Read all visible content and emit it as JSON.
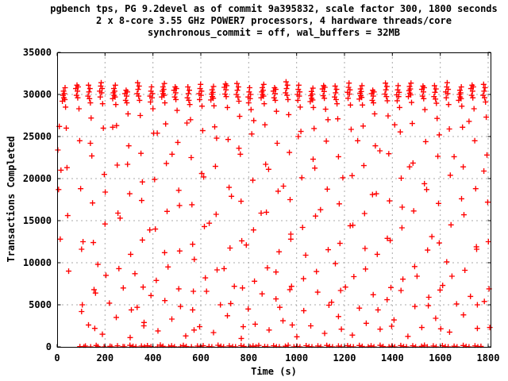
{
  "chart_data": {
    "type": "scatter",
    "title_lines": [
      "pgbench tps, PG 9.2devel as of commit 9a395832, scale factor 300, 1800 seconds",
      "2 x 8-core 3.55 GHz POWER7 processors, 4 hardware threads/core",
      "synchronous_commit = off, wal_buffers = 32MB"
    ],
    "xlabel": "Time (s)",
    "ylabel": "Transactions Completed",
    "xlim": [
      0,
      1810
    ],
    "ylim": [
      0,
      35000
    ],
    "xticks": [
      0,
      200,
      400,
      600,
      800,
      1000,
      1200,
      1400,
      1600,
      1800
    ],
    "yticks": [
      0,
      5000,
      10000,
      15000,
      20000,
      25000,
      30000,
      35000
    ],
    "grid": true,
    "legend": "none",
    "grid_color": "#aaaaaa",
    "border_color": "#000000",
    "background_color": "#ffffff",
    "text_color": "#000000",
    "marker": {
      "shape": "plus",
      "color": "#ff0000",
      "size": 7
    },
    "points_xy": [
      3,
      23400,
      6,
      18700,
      9,
      26200,
      13,
      12800,
      16,
      21000,
      22,
      29200,
      25,
      29900,
      27,
      30400,
      28,
      29600,
      30,
      30100,
      32,
      29400,
      33,
      30800,
      35,
      28500,
      38,
      26000,
      41,
      21300,
      44,
      15600,
      48,
      9000,
      78,
      30700,
      81,
      29900,
      83,
      31100,
      85,
      30400,
      86,
      29600,
      88,
      30900,
      91,
      28300,
      94,
      24500,
      98,
      18800,
      102,
      11600,
      105,
      5000,
      129,
      29800,
      131,
      31100,
      133,
      30300,
      135,
      29500,
      137,
      30700,
      139,
      29000,
      142,
      27200,
      145,
      22700,
      148,
      17100,
      151,
      12400,
      154,
      6800,
      157,
      2200,
      178,
      30400,
      180,
      29700,
      182,
      31000,
      184,
      31400,
      186,
      30200,
      188,
      30700,
      190,
      28900,
      193,
      26000,
      197,
      20500,
      200,
      14600,
      204,
      8500,
      232,
      29500,
      235,
      30200,
      237,
      30700,
      238,
      29900,
      240,
      30400,
      242,
      29700,
      243,
      31100,
      245,
      28800,
      248,
      26300,
      251,
      21600,
      254,
      15900,
      258,
      9300,
      283,
      30100,
      286,
      29300,
      288,
      30500,
      290,
      29800,
      291,
      29000,
      293,
      30300,
      296,
      27700,
      299,
      23900,
      303,
      18200,
      307,
      11000,
      310,
      4400,
      334,
      30100,
      336,
      31400,
      338,
      30600,
      340,
      29800,
      342,
      31000,
      344,
      29300,
      347,
      27500,
      350,
      23000,
      353,
      17400,
      356,
      12700,
      359,
      7100,
      362,
      2500,
      388,
      29800,
      390,
      29100,
      392,
      30400,
      394,
      30900,
      396,
      29600,
      398,
      30100,
      400,
      28300,
      403,
      25400,
      407,
      19900,
      410,
      14000,
      414,
      7900,
      437,
      29700,
      440,
      30400,
      442,
      30900,
      443,
      30100,
      445,
      30600,
      447,
      29900,
      448,
      31300,
      450,
      29000,
      453,
      26500,
      456,
      21800,
      459,
      16100,
      463,
      9500,
      488,
      30500,
      491,
      29700,
      493,
      30900,
      495,
      30200,
      496,
      29400,
      498,
      30700,
      501,
      28100,
      504,
      24300,
      508,
      18600,
      512,
      11400,
      515,
      4800,
      544,
      29600,
      546,
      30900,
      548,
      30100,
      550,
      29300,
      552,
      30500,
      554,
      28800,
      557,
      27000,
      560,
      22500,
      563,
      16900,
      566,
      12200,
      569,
      6600,
      572,
      2000,
      593,
      30100,
      595,
      29400,
      597,
      30700,
      599,
      31200,
      601,
      29900,
      603,
      30400,
      605,
      28600,
      608,
      25700,
      612,
      20200,
      615,
      14300,
      619,
      8200,
      642,
      29350,
      645,
      30050,
      647,
      30550,
      648,
      29750,
      650,
      30250,
      652,
      29550,
      653,
      30950,
      655,
      28650,
      658,
      26150,
      661,
      21450,
      664,
      15750,
      668,
      9150,
      698,
      30850,
      701,
      30050,
      703,
      31250,
      705,
      30550,
      706,
      29750,
      708,
      31050,
      711,
      28450,
      714,
      24650,
      718,
      18950,
      722,
      11750,
      725,
      5150,
      749,
      30000,
      751,
      31300,
      753,
      30500,
      755,
      29700,
      757,
      30900,
      759,
      29200,
      762,
      27400,
      765,
      22900,
      768,
      17300,
      771,
      12600,
      774,
      7000,
      777,
      2400,
      798,
      29700,
      800,
      29000,
      802,
      30300,
      804,
      30800,
      806,
      29500,
      808,
      30000,
      810,
      28200,
      813,
      25300,
      817,
      19800,
      820,
      13900,
      824,
      7800,
      852,
      29600,
      855,
      30300,
      857,
      30800,
      858,
      30000,
      860,
      30500,
      862,
      29800,
      863,
      31200,
      865,
      28900,
      868,
      26400,
      871,
      21700,
      874,
      16000,
      878,
      9400,
      903,
      30400,
      906,
      29600,
      908,
      30800,
      910,
      30100,
      911,
      29300,
      913,
      30600,
      916,
      28000,
      919,
      24200,
      923,
      18500,
      927,
      11300,
      930,
      4700,
      954,
      30200,
      956,
      31500,
      958,
      30700,
      960,
      29900,
      962,
      31100,
      964,
      29400,
      967,
      27600,
      970,
      23100,
      973,
      17500,
      976,
      12800,
      979,
      7200,
      982,
      2600,
      1003,
      30000,
      1005,
      29300,
      1007,
      30600,
      1009,
      31100,
      1011,
      29800,
      1013,
      30300,
      1015,
      28500,
      1018,
      25600,
      1022,
      20100,
      1025,
      14200,
      1029,
      8100,
      1057,
      29150,
      1060,
      29850,
      1062,
      30350,
      1063,
      29550,
      1065,
      30050,
      1067,
      29350,
      1068,
      30750,
      1070,
      28450,
      1073,
      25950,
      1076,
      21250,
      1079,
      15550,
      1083,
      8950,
      1108,
      30650,
      1111,
      29850,
      1113,
      31050,
      1115,
      30350,
      1116,
      29550,
      1118,
      30850,
      1121,
      28250,
      1124,
      24450,
      1128,
      18750,
      1132,
      11550,
      1135,
      4950,
      1159,
      29700,
      1161,
      31000,
      1163,
      30200,
      1165,
      29400,
      1167,
      30600,
      1169,
      28900,
      1172,
      27100,
      1175,
      22600,
      1178,
      17000,
      1181,
      12300,
      1184,
      6700,
      1187,
      2100,
      1213,
      30250,
      1215,
      29550,
      1217,
      30850,
      1219,
      31350,
      1221,
      30050,
      1223,
      30550,
      1225,
      28750,
      1228,
      25850,
      1232,
      20350,
      1235,
      14450,
      1239,
      8350,
      1262,
      29450,
      1265,
      30150,
      1267,
      30650,
      1268,
      29850,
      1270,
      30350,
      1272,
      29650,
      1273,
      31050,
      1275,
      28750,
      1278,
      26250,
      1281,
      21550,
      1284,
      15850,
      1288,
      9250,
      1313,
      30100,
      1316,
      29300,
      1318,
      30500,
      1320,
      29800,
      1321,
      29000,
      1323,
      30300,
      1326,
      27700,
      1329,
      23900,
      1333,
      18200,
      1337,
      11000,
      1340,
      4400,
      1369,
      30050,
      1371,
      31350,
      1373,
      30550,
      1375,
      29750,
      1377,
      30950,
      1379,
      29250,
      1382,
      27450,
      1385,
      22950,
      1388,
      17350,
      1391,
      12650,
      1394,
      7050,
      1397,
      2450,
      1418,
      29950,
      1420,
      29250,
      1422,
      30550,
      1424,
      31050,
      1426,
      29750,
      1428,
      30250,
      1430,
      28450,
      1433,
      25550,
      1437,
      20050,
      1440,
      14150,
      1444,
      8050,
      1467,
      29750,
      1470,
      30450,
      1472,
      30950,
      1473,
      30150,
      1475,
      30650,
      1477,
      29950,
      1478,
      31350,
      1480,
      29050,
      1483,
      26550,
      1486,
      21850,
      1489,
      16150,
      1493,
      9550,
      1523,
      30600,
      1526,
      29800,
      1528,
      31000,
      1530,
      30300,
      1531,
      29500,
      1533,
      30800,
      1536,
      28200,
      1539,
      24400,
      1543,
      18700,
      1547,
      11500,
      1550,
      4900,
      1574,
      29750,
      1576,
      31050,
      1578,
      30250,
      1580,
      29450,
      1582,
      30650,
      1584,
      28950,
      1587,
      27150,
      1590,
      22650,
      1593,
      17050,
      1596,
      12350,
      1599,
      6750,
      1602,
      2150,
      1623,
      30300,
      1625,
      29600,
      1627,
      30900,
      1629,
      31400,
      1631,
      30100,
      1633,
      30600,
      1635,
      28800,
      1638,
      25900,
      1642,
      20400,
      1645,
      14500,
      1649,
      8400,
      1677,
      29300,
      1680,
      30000,
      1682,
      30500,
      1683,
      29700,
      1685,
      30200,
      1687,
      29500,
      1688,
      30900,
      1690,
      28600,
      1693,
      26100,
      1696,
      21400,
      1699,
      15700,
      1703,
      9100,
      1728,
      30700,
      1731,
      29900,
      1733,
      31100,
      1735,
      30400,
      1736,
      29600,
      1738,
      30900,
      1741,
      28300,
      1744,
      24500,
      1748,
      18800,
      1752,
      11600,
      1755,
      5000,
      1779,
      29900,
      1781,
      31200,
      1783,
      30400,
      1785,
      29600,
      1787,
      30800,
      1789,
      29100,
      1792,
      27300,
      1795,
      22800,
      1798,
      17200,
      1801,
      12500,
      1804,
      6900,
      1807,
      2300,
      95,
      30,
      112,
      0,
      118,
      90,
      140,
      0,
      163,
      160,
      170,
      40,
      196,
      0,
      221,
      70,
      228,
      0,
      252,
      120,
      275,
      20,
      281,
      0,
      304,
      180,
      317,
      60,
      329,
      0,
      352,
      90,
      365,
      0,
      377,
      140,
      392,
      30,
      419,
      0,
      431,
      210,
      442,
      70,
      466,
      0,
      478,
      110,
      490,
      10,
      515,
      0,
      527,
      160,
      539,
      50,
      561,
      0,
      586,
      90,
      598,
      0,
      610,
      130,
      634,
      40,
      646,
      0,
      672,
      190,
      684,
      70,
      695,
      0,
      719,
      110,
      733,
      20,
      745,
      0,
      768,
      150,
      780,
      60,
      806,
      0,
      818,
      100,
      830,
      0,
      842,
      170,
      867,
      40,
      879,
      0,
      904,
      120,
      916,
      10,
      928,
      0,
      953,
      80,
      965,
      190,
      989,
      0,
      1002,
      60,
      1014,
      0,
      1040,
      140,
      1052,
      30,
      1064,
      0,
      1089,
      100,
      1101,
      0,
      1126,
      170,
      1138,
      50,
      1150,
      0,
      1175,
      90,
      1187,
      0,
      1213,
      130,
      1225,
      20,
      1237,
      0,
      1262,
      160,
      1274,
      60,
      1299,
      0,
      1311,
      110,
      1323,
      0,
      1349,
      180,
      1361,
      40,
      1386,
      0,
      1398,
      90,
      1410,
      0,
      1435,
      150,
      1447,
      30,
      1459,
      0,
      1485,
      120,
      1497,
      0,
      1522,
      70,
      1534,
      190,
      1546,
      0,
      1571,
      100,
      1583,
      0,
      1609,
      140,
      1621,
      20,
      1633,
      0,
      1658,
      80,
      1670,
      0,
      1696,
      160,
      1708,
      50,
      1720,
      0,
      1745,
      110,
      1757,
      0,
      1770,
      60,
      102,
      4200,
      131,
      2600,
      160,
      6400,
      189,
      1500,
      218,
      5200,
      247,
      3500,
      276,
      7000,
      305,
      1100,
      334,
      4700,
      363,
      2900,
      392,
      6100,
      421,
      1900,
      450,
      5500,
      479,
      3300,
      508,
      6900,
      537,
      1300,
      566,
      4400,
      595,
      2400,
      624,
      6600,
      653,
      1700,
      682,
      5000,
      711,
      3700,
      740,
      7200,
      769,
      1000,
      798,
      4500,
      827,
      2700,
      856,
      6300,
      885,
      2000,
      914,
      5700,
      943,
      3100,
      972,
      6800,
      1001,
      1200,
      1030,
      4300,
      1059,
      2500,
      1088,
      6500,
      1117,
      1600,
      1146,
      5300,
      1175,
      3600,
      1204,
      7100,
      1233,
      1400,
      1262,
      4600,
      1291,
      2800,
      1320,
      6200,
      1349,
      2100,
      1378,
      5600,
      1407,
      3200,
      1436,
      6700,
      1465,
      1250,
      1494,
      4800,
      1523,
      2300,
      1552,
      5900,
      1581,
      3400,
      1610,
      7300,
      1639,
      1750,
      1668,
      5100,
      1697,
      3800,
      1726,
      6000,
      1755,
      2200,
      1784,
      5400,
      108,
      12500,
      139,
      24200,
      170,
      9800,
      201,
      18400,
      232,
      26100,
      263,
      15300,
      294,
      21700,
      325,
      8700,
      356,
      19600,
      387,
      13900,
      418,
      25400,
      449,
      11200,
      480,
      22900,
      511,
      16800,
      542,
      26600,
      573,
      10400,
      604,
      20600,
      635,
      14700,
      666,
      24800,
      697,
      9300,
      728,
      17900,
      759,
      23600,
      790,
      12100,
      821,
      26900,
      852,
      15900,
      883,
      21100,
      914,
      8900,
      945,
      19100,
      976,
      13400,
      1007,
      25000,
      1038,
      10900,
      1069,
      22300,
      1100,
      16300,
      1131,
      27000,
      1162,
      9900,
      1193,
      20100,
      1224,
      14400,
      1255,
      24500,
      1286,
      11700,
      1317,
      18100,
      1348,
      23300,
      1379,
      12900,
      1410,
      26400,
      1441,
      16600,
      1472,
      21400,
      1503,
      8400,
      1534,
      19400,
      1565,
      13100,
      1596,
      25200,
      1627,
      10100,
      1658,
      22600,
      1689,
      17600,
      1720,
      26800,
      1751,
      11900,
      1782,
      20900
    ]
  }
}
